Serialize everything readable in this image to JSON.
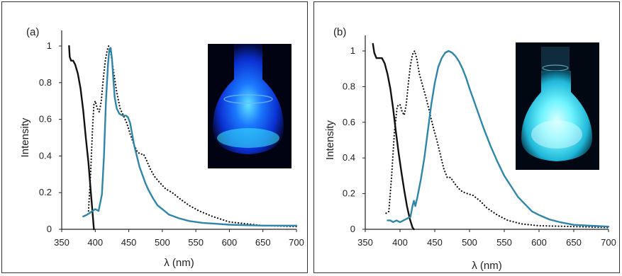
{
  "chart_data": [
    {
      "type": "line",
      "panel_label": "(a)",
      "xlabel": "λ (nm)",
      "ylabel": "Intensity",
      "xlim": [
        350,
        700
      ],
      "ylim": [
        0,
        1.0
      ],
      "xticks": [
        350,
        400,
        450,
        500,
        550,
        600,
        650,
        700
      ],
      "yticks": [
        0,
        0.2,
        0.4,
        0.6,
        0.8,
        1
      ],
      "grid": false,
      "legend": "none",
      "inset": "photo of glass flask with bright blue fluorescence",
      "series": [
        {
          "style": "solid-black",
          "color": "#111111",
          "points": [
            [
              361,
              1.0
            ],
            [
              362,
              0.94
            ],
            [
              364,
              0.92
            ],
            [
              367,
              0.92
            ],
            [
              370,
              0.9
            ],
            [
              374,
              0.85
            ],
            [
              378,
              0.77
            ],
            [
              382,
              0.65
            ],
            [
              386,
              0.5
            ],
            [
              390,
              0.36
            ],
            [
              393,
              0.22
            ],
            [
              396,
              0.09
            ],
            [
              398,
              0.0
            ]
          ]
        },
        {
          "style": "dotted-black",
          "color": "#111111",
          "points": [
            [
              390,
              0.1
            ],
            [
              393,
              0.3
            ],
            [
              396,
              0.55
            ],
            [
              398,
              0.68
            ],
            [
              400,
              0.7
            ],
            [
              403,
              0.66
            ],
            [
              406,
              0.64
            ],
            [
              409,
              0.7
            ],
            [
              412,
              0.82
            ],
            [
              415,
              0.92
            ],
            [
              418,
              0.98
            ],
            [
              420,
              1.0
            ],
            [
              423,
              0.97
            ],
            [
              427,
              0.87
            ],
            [
              432,
              0.75
            ],
            [
              437,
              0.66
            ],
            [
              442,
              0.62
            ],
            [
              447,
              0.58
            ],
            [
              452,
              0.52
            ],
            [
              458,
              0.46
            ],
            [
              463,
              0.42
            ],
            [
              468,
              0.41
            ],
            [
              472,
              0.41
            ],
            [
              476,
              0.38
            ],
            [
              482,
              0.33
            ],
            [
              488,
              0.29
            ],
            [
              495,
              0.26
            ],
            [
              505,
              0.22
            ],
            [
              515,
              0.2
            ],
            [
              525,
              0.17
            ],
            [
              540,
              0.13
            ],
            [
              555,
              0.1
            ],
            [
              575,
              0.07
            ],
            [
              600,
              0.04
            ],
            [
              625,
              0.03
            ],
            [
              650,
              0.02
            ],
            [
              700,
              0.015
            ]
          ]
        },
        {
          "style": "solid-blue",
          "color": "#2e86ab",
          "points": [
            [
              382,
              0.07
            ],
            [
              388,
              0.08
            ],
            [
              392,
              0.09
            ],
            [
              396,
              0.1
            ],
            [
              400,
              0.11
            ],
            [
              405,
              0.1
            ],
            [
              410,
              0.19
            ],
            [
              413,
              0.4
            ],
            [
              416,
              0.7
            ],
            [
              419,
              0.9
            ],
            [
              421,
              0.98
            ],
            [
              423,
              0.99
            ],
            [
              425,
              0.93
            ],
            [
              427,
              0.82
            ],
            [
              429,
              0.72
            ],
            [
              432,
              0.66
            ],
            [
              436,
              0.63
            ],
            [
              441,
              0.62
            ],
            [
              446,
              0.62
            ],
            [
              449,
              0.61
            ],
            [
              452,
              0.58
            ],
            [
              455,
              0.52
            ],
            [
              458,
              0.46
            ],
            [
              462,
              0.4
            ],
            [
              466,
              0.34
            ],
            [
              470,
              0.3
            ],
            [
              475,
              0.25
            ],
            [
              480,
              0.21
            ],
            [
              486,
              0.17
            ],
            [
              493,
              0.13
            ],
            [
              500,
              0.11
            ],
            [
              510,
              0.08
            ],
            [
              525,
              0.06
            ],
            [
              540,
              0.045
            ],
            [
              560,
              0.035
            ],
            [
              580,
              0.03
            ],
            [
              600,
              0.025
            ],
            [
              650,
              0.02
            ],
            [
              700,
              0.02
            ]
          ]
        }
      ]
    },
    {
      "type": "line",
      "panel_label": "(b)",
      "xlabel": "λ (nm)",
      "ylabel": "Intensity",
      "xlim": [
        350,
        700
      ],
      "ylim": [
        0,
        1.0
      ],
      "xticks": [
        350,
        400,
        450,
        500,
        550,
        600,
        650,
        700
      ],
      "yticks": [
        0,
        0.2,
        0.4,
        0.6,
        0.8,
        1
      ],
      "grid": false,
      "legend": "none",
      "inset": "photo of glass flask with bright cyan fluorescence",
      "series": [
        {
          "style": "solid-black",
          "color": "#111111",
          "points": [
            [
              361,
              1.04
            ],
            [
              363,
              0.99
            ],
            [
              366,
              0.96
            ],
            [
              370,
              0.96
            ],
            [
              374,
              0.96
            ],
            [
              378,
              0.93
            ],
            [
              382,
              0.87
            ],
            [
              386,
              0.79
            ],
            [
              390,
              0.68
            ],
            [
              394,
              0.55
            ],
            [
              398,
              0.43
            ],
            [
              402,
              0.32
            ],
            [
              406,
              0.22
            ],
            [
              410,
              0.13
            ],
            [
              414,
              0.06
            ],
            [
              418,
              0.01
            ],
            [
              420,
              0.0
            ]
          ]
        },
        {
          "style": "dotted-black",
          "color": "#111111",
          "points": [
            [
              380,
              0.09
            ],
            [
              384,
              0.1
            ],
            [
              388,
              0.3
            ],
            [
              392,
              0.55
            ],
            [
              396,
              0.69
            ],
            [
              400,
              0.7
            ],
            [
              403,
              0.66
            ],
            [
              406,
              0.64
            ],
            [
              409,
              0.7
            ],
            [
              412,
              0.82
            ],
            [
              415,
              0.92
            ],
            [
              418,
              0.98
            ],
            [
              421,
              1.0
            ],
            [
              424,
              0.96
            ],
            [
              428,
              0.87
            ],
            [
              433,
              0.8
            ],
            [
              438,
              0.73
            ],
            [
              443,
              0.65
            ],
            [
              448,
              0.57
            ],
            [
              453,
              0.5
            ],
            [
              458,
              0.42
            ],
            [
              463,
              0.34
            ],
            [
              468,
              0.29
            ],
            [
              473,
              0.29
            ],
            [
              478,
              0.26
            ],
            [
              484,
              0.23
            ],
            [
              490,
              0.21
            ],
            [
              497,
              0.2
            ],
            [
              505,
              0.19
            ],
            [
              515,
              0.16
            ],
            [
              525,
              0.12
            ],
            [
              540,
              0.08
            ],
            [
              555,
              0.05
            ],
            [
              575,
              0.03
            ],
            [
              600,
              0.02
            ],
            [
              650,
              0.015
            ],
            [
              700,
              0.01
            ]
          ]
        },
        {
          "style": "solid-blue",
          "color": "#2e86ab",
          "points": [
            [
              382,
              0.05
            ],
            [
              386,
              0.05
            ],
            [
              390,
              0.04
            ],
            [
              395,
              0.05
            ],
            [
              400,
              0.04
            ],
            [
              405,
              0.05
            ],
            [
              410,
              0.06
            ],
            [
              415,
              0.07
            ],
            [
              418,
              0.13
            ],
            [
              420,
              0.16
            ],
            [
              422,
              0.13
            ],
            [
              425,
              0.18
            ],
            [
              430,
              0.28
            ],
            [
              435,
              0.4
            ],
            [
              440,
              0.55
            ],
            [
              445,
              0.7
            ],
            [
              450,
              0.82
            ],
            [
              455,
              0.91
            ],
            [
              460,
              0.96
            ],
            [
              465,
              0.99
            ],
            [
              470,
              1.0
            ],
            [
              475,
              0.99
            ],
            [
              480,
              0.97
            ],
            [
              485,
              0.94
            ],
            [
              490,
              0.9
            ],
            [
              495,
              0.85
            ],
            [
              500,
              0.79
            ],
            [
              510,
              0.68
            ],
            [
              520,
              0.57
            ],
            [
              530,
              0.47
            ],
            [
              540,
              0.38
            ],
            [
              550,
              0.3
            ],
            [
              560,
              0.24
            ],
            [
              570,
              0.18
            ],
            [
              580,
              0.14
            ],
            [
              590,
              0.1
            ],
            [
              600,
              0.08
            ],
            [
              615,
              0.055
            ],
            [
              630,
              0.04
            ],
            [
              650,
              0.025
            ],
            [
              675,
              0.02
            ],
            [
              700,
              0.015
            ]
          ]
        }
      ]
    }
  ]
}
